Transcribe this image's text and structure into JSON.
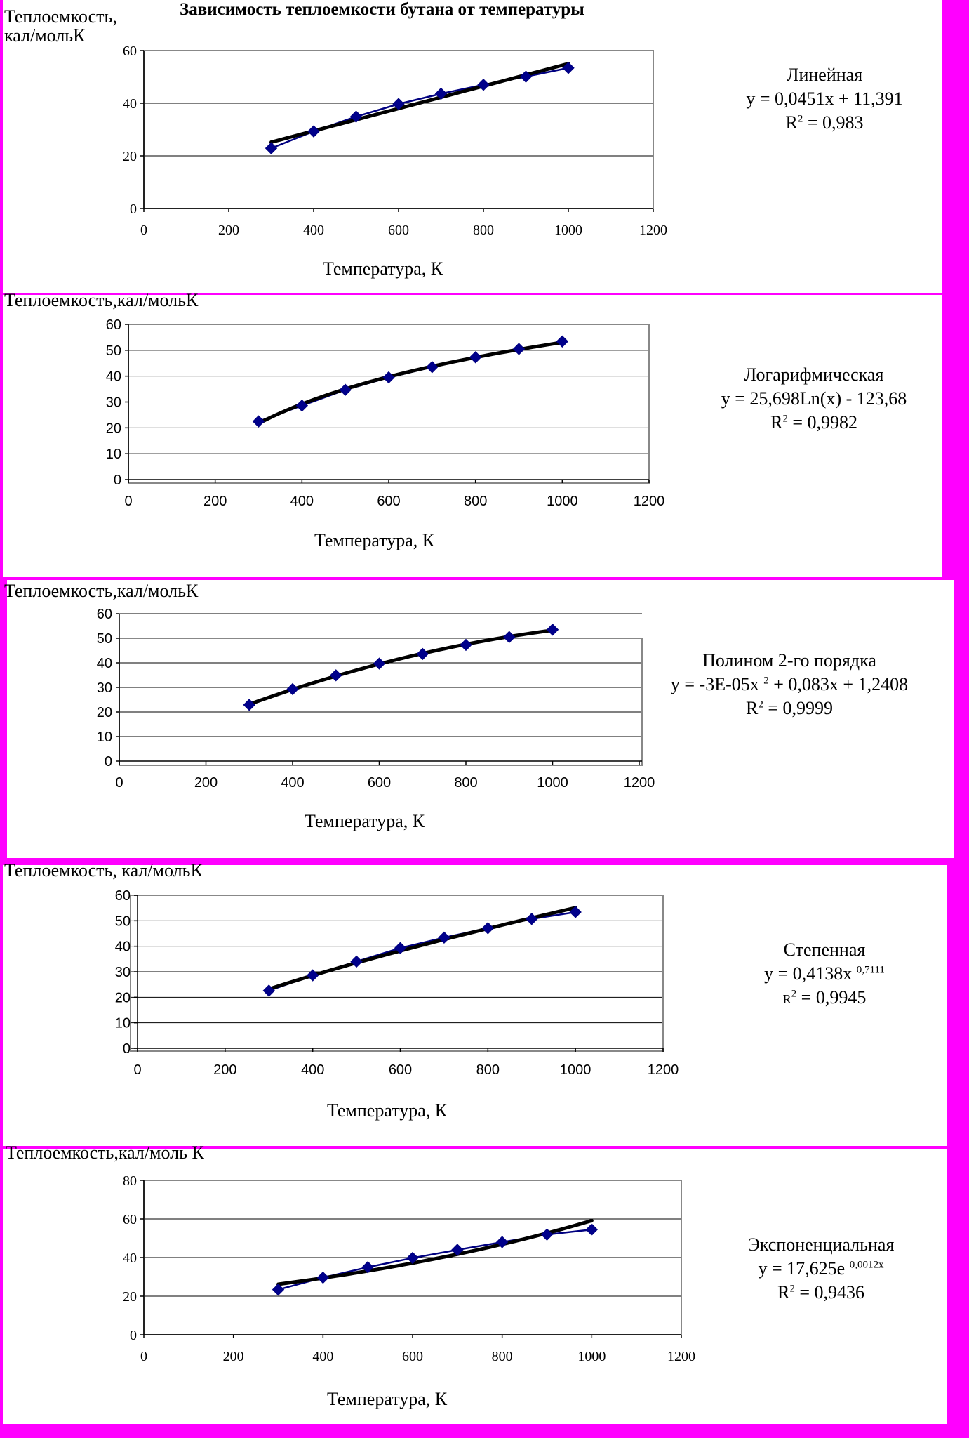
{
  "page_title": "Зависимость теплоемкости бутана от температуры",
  "colors": {
    "background": "#ff00ff",
    "panel": "#ffffff",
    "data_series": "#000080",
    "marker": "#00008b",
    "trendline": "#000000",
    "gridline": "#000000"
  },
  "chart_data": [
    {
      "type": "scatter",
      "title": "",
      "ylabel": "Теплоемкость, кал/мольК",
      "xlabel": "Температура, К",
      "xlim": [
        0,
        1200
      ],
      "ylim": [
        0,
        60
      ],
      "xticks": [
        "0",
        "200",
        "400",
        "600",
        "800",
        "1000",
        "1200"
      ],
      "yticks": [
        "0",
        "20",
        "40",
        "60"
      ],
      "grid": true,
      "x": [
        300,
        400,
        500,
        600,
        700,
        800,
        900,
        1000
      ],
      "series": [
        {
          "values": [
            22.9,
            29.3,
            34.9,
            39.7,
            43.6,
            47.0,
            50.1,
            53.4
          ]
        }
      ],
      "trendline": {
        "type": "linear",
        "name": "Линейная",
        "equation": "y = 0,0451x + 11,391",
        "r2_label": "R",
        "r2_sup": "2",
        "r2_value": " = 0,983"
      }
    },
    {
      "type": "scatter",
      "title": "",
      "ylabel": "Теплоемкость,кал/мольК",
      "xlabel": "Температура, К",
      "xlim": [
        0,
        1200
      ],
      "ylim": [
        0,
        60
      ],
      "xticks": [
        "0",
        "200",
        "400",
        "600",
        "800",
        "1000",
        "1200"
      ],
      "yticks": [
        "0",
        "10",
        "20",
        "30",
        "40",
        "50",
        "60"
      ],
      "grid": true,
      "x": [
        300,
        400,
        500,
        600,
        700,
        800,
        900,
        1000
      ],
      "series": [
        {
          "values": [
            22.5,
            28.6,
            34.7,
            39.5,
            43.5,
            47.3,
            50.5,
            53.4
          ]
        }
      ],
      "trendline": {
        "type": "logarithmic",
        "name": "Логарифмическая",
        "equation": "y = 25,698Ln(x) - 123,68",
        "r2_label": "R",
        "r2_sup": "2",
        "r2_value": " = 0,9982"
      }
    },
    {
      "type": "scatter",
      "title": "",
      "ylabel": "Теплоемкость,кал/мольК",
      "xlabel": "Температура, К",
      "xlim": [
        0,
        1200
      ],
      "ylim": [
        0,
        60
      ],
      "xticks": [
        "0",
        "200",
        "400",
        "600",
        "800",
        "1000",
        "1200"
      ],
      "yticks": [
        "0",
        "10",
        "20",
        "30",
        "40",
        "50",
        "60"
      ],
      "grid": true,
      "x": [
        300,
        400,
        500,
        600,
        700,
        800,
        900,
        1000
      ],
      "series": [
        {
          "values": [
            22.9,
            29.3,
            34.9,
            39.7,
            43.6,
            47.3,
            50.5,
            53.5
          ]
        }
      ],
      "trendline": {
        "type": "polynomial",
        "name": "Полином 2-го порядка",
        "equation_pre": "y = -3E-05x ",
        "equation_sup": "2",
        "equation_post": " + 0,083x + 1,2408",
        "r2_label": "R",
        "r2_sup": "2",
        "r2_value": " = 0,9999"
      }
    },
    {
      "type": "scatter",
      "title": "",
      "ylabel": "Теплоемкость, кал/мольК",
      "xlabel": "Температура, К",
      "xlim": [
        0,
        1200
      ],
      "ylim": [
        0,
        60
      ],
      "xticks": [
        "0",
        "200",
        "400",
        "600",
        "800",
        "1000",
        "1200"
      ],
      "yticks": [
        "0",
        "10",
        "20",
        "30",
        "40",
        "50",
        "60"
      ],
      "grid": true,
      "x": [
        300,
        400,
        500,
        600,
        700,
        800,
        900,
        1000
      ],
      "series": [
        {
          "values": [
            22.6,
            28.6,
            34.0,
            39.3,
            43.4,
            47.1,
            50.7,
            53.4
          ]
        }
      ],
      "trendline": {
        "type": "power",
        "name": "Степенная",
        "equation_pre": "y = 0,4138x ",
        "equation_sup": "0,7111",
        "r2_label": "R",
        "r2_sup": "2",
        "r2_value": " = 0,9945"
      }
    },
    {
      "type": "scatter",
      "title": "",
      "ylabel": "Теплоемкость,кал/моль К",
      "xlabel": "Температура, К",
      "xlim": [
        0,
        1200
      ],
      "ylim": [
        0,
        80
      ],
      "xticks": [
        "0",
        "200",
        "400",
        "600",
        "800",
        "1000",
        "1200"
      ],
      "yticks": [
        "0",
        "20",
        "40",
        "60",
        "80"
      ],
      "grid": true,
      "x": [
        300,
        400,
        500,
        600,
        700,
        800,
        900,
        1000
      ],
      "series": [
        {
          "values": [
            23.4,
            29.6,
            35.0,
            39.8,
            44.0,
            48.0,
            51.9,
            54.5
          ]
        }
      ],
      "trendline": {
        "type": "exponential",
        "name": "Экспоненциальная",
        "equation_pre": "y = 17,625e ",
        "equation_sup": "0,0012x",
        "r2_label": "R",
        "r2_sup": "2",
        "r2_value": " = 0,9436"
      }
    }
  ]
}
